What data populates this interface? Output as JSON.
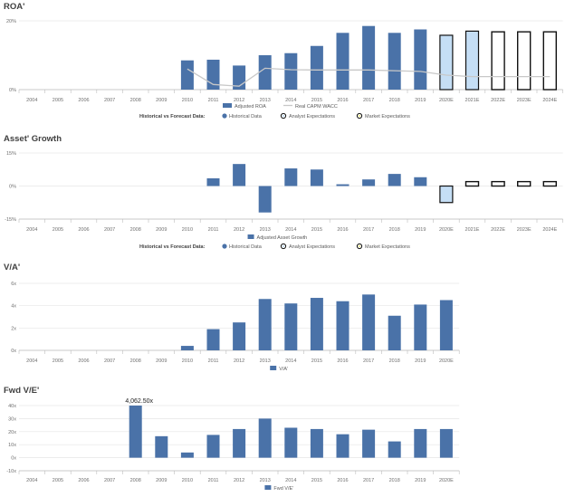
{
  "colors": {
    "historical": "#4a72a8",
    "analyst": "#c5def5",
    "market": "#ffffff",
    "wacc": "#c8c8c8",
    "grid": "#e6e6e6",
    "axis": "#bdbdbd"
  },
  "chart_data": [
    {
      "type": "bar",
      "title": "ROA'",
      "categories": [
        "2004",
        "2005",
        "2006",
        "2007",
        "2008",
        "2009",
        "2010",
        "2011",
        "2012",
        "2013",
        "2014",
        "2015",
        "2016",
        "2017",
        "2018",
        "2019",
        "2020E",
        "2021E",
        "2022E",
        "2023E",
        "2024E"
      ],
      "y_ticks": [
        "0%",
        "20%"
      ],
      "ylim": [
        0,
        20
      ],
      "series": [
        {
          "name": "Adjusted ROA",
          "kind": "bar",
          "values": [
            null,
            null,
            null,
            null,
            null,
            null,
            8.5,
            8.7,
            7.0,
            10.0,
            10.6,
            12.7,
            16.5,
            18.5,
            16.5,
            17.5,
            15.8,
            17.0,
            16.8,
            16.8,
            16.8
          ],
          "styles": [
            "h",
            "h",
            "h",
            "h",
            "h",
            "h",
            "h",
            "h",
            "h",
            "h",
            "h",
            "h",
            "h",
            "h",
            "h",
            "h",
            "a",
            "a",
            "m",
            "m",
            "m"
          ]
        },
        {
          "name": "Real CAPM WACC",
          "kind": "line",
          "values": [
            null,
            null,
            null,
            null,
            null,
            null,
            6.0,
            1.5,
            1.0,
            6.2,
            5.8,
            5.7,
            5.7,
            5.7,
            5.5,
            5.3,
            4.2,
            3.8,
            3.8,
            3.8,
            3.8
          ]
        }
      ],
      "legend_title": "Historical vs Forecast Data:",
      "legend_items": [
        "Historical Data",
        "Analyst Expectations",
        "Market Expectations"
      ]
    },
    {
      "type": "bar",
      "title": "Asset' Growth",
      "categories": [
        "2004",
        "2005",
        "2006",
        "2007",
        "2008",
        "2009",
        "2010",
        "2011",
        "2012",
        "2013",
        "2014",
        "2015",
        "2016",
        "2017",
        "2018",
        "2019",
        "2020E",
        "2021E",
        "2022E",
        "2023E",
        "2024E"
      ],
      "y_ticks": [
        "-15%",
        "0%",
        "15%"
      ],
      "ylim": [
        -15,
        15
      ],
      "series": [
        {
          "name": "Adjusted Asset Growth",
          "kind": "bar",
          "values": [
            null,
            null,
            null,
            null,
            null,
            null,
            null,
            3.5,
            10.0,
            -12.0,
            8.0,
            7.5,
            0.8,
            3.0,
            5.5,
            4.0,
            -7.5,
            2.0,
            2.0,
            2.0,
            2.0
          ],
          "styles": [
            "h",
            "h",
            "h",
            "h",
            "h",
            "h",
            "h",
            "h",
            "h",
            "h",
            "h",
            "h",
            "h",
            "h",
            "h",
            "h",
            "a",
            "m",
            "m",
            "m",
            "m"
          ]
        }
      ],
      "legend_title": "Historical vs Forecast Data:",
      "legend_items": [
        "Historical Data",
        "Analyst Expectations",
        "Market Expectations"
      ]
    },
    {
      "type": "bar",
      "title": "V/A'",
      "categories": [
        "2004",
        "2005",
        "2006",
        "2007",
        "2008",
        "2009",
        "2010",
        "2011",
        "2012",
        "2013",
        "2014",
        "2015",
        "2016",
        "2017",
        "2018",
        "2019",
        "2020E"
      ],
      "y_ticks": [
        "0x",
        "2x",
        "4x",
        "6x"
      ],
      "ylim": [
        0,
        6
      ],
      "series": [
        {
          "name": "V/A'",
          "kind": "bar",
          "values": [
            null,
            null,
            null,
            null,
            null,
            null,
            0.4,
            1.9,
            2.5,
            4.6,
            4.2,
            4.7,
            4.4,
            5.0,
            3.1,
            4.1,
            4.5
          ],
          "styles": [
            "h",
            "h",
            "h",
            "h",
            "h",
            "h",
            "h",
            "h",
            "h",
            "h",
            "h",
            "h",
            "h",
            "h",
            "h",
            "h",
            "h"
          ]
        }
      ]
    },
    {
      "type": "bar",
      "title": "Fwd V/E'",
      "categories": [
        "2004",
        "2005",
        "2006",
        "2007",
        "2008",
        "2009",
        "2010",
        "2011",
        "2012",
        "2013",
        "2014",
        "2015",
        "2016",
        "2017",
        "2018",
        "2019",
        "2020E"
      ],
      "y_ticks": [
        "-10x",
        "0x",
        "10x",
        "20x",
        "30x",
        "40x"
      ],
      "ylim": [
        -10,
        40
      ],
      "annotation": {
        "text": "4,062.50x",
        "category": "2008"
      },
      "series": [
        {
          "name": "Fwd V/E'",
          "kind": "bar",
          "values": [
            null,
            null,
            null,
            null,
            40,
            16.5,
            4,
            17.5,
            22,
            30,
            23,
            22,
            18,
            21.5,
            12.5,
            22,
            22
          ],
          "styles": [
            "h",
            "h",
            "h",
            "h",
            "h",
            "h",
            "h",
            "h",
            "h",
            "h",
            "h",
            "h",
            "h",
            "h",
            "h",
            "h",
            "h"
          ]
        }
      ]
    }
  ]
}
